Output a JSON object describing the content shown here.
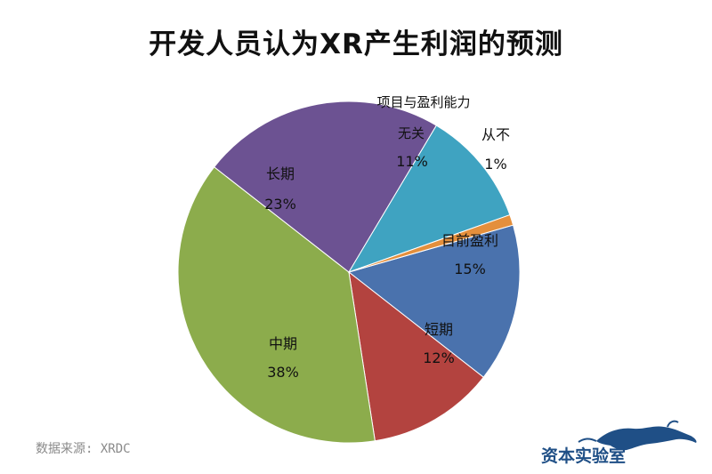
{
  "title": "开发人员认为XR产生利润的预测",
  "source": "数据来源: XRDC",
  "logo_text": "资本实验室",
  "colors": {
    "title": "#111111",
    "source": "#8a8a8a",
    "logo": "#1f4f86"
  },
  "chart_data": {
    "type": "pie",
    "title": "开发人员认为XR产生利润的预测",
    "slices": [
      {
        "label": "目前盈利",
        "value": 15,
        "display": "15%",
        "color": "#4a72ad"
      },
      {
        "label": "短期",
        "value": 12,
        "display": "12%",
        "color": "#b3433f"
      },
      {
        "label": "中期",
        "value": 38,
        "display": "38%",
        "color": "#8cac4c"
      },
      {
        "label": "长期",
        "value": 23,
        "display": "23%",
        "color": "#6c5292"
      },
      {
        "label": "项目与盈利能力无关",
        "value": 11,
        "display": "11%",
        "color": "#3fa3c1"
      },
      {
        "label": "从不",
        "value": 1,
        "display": "1%",
        "color": "#e48f3c"
      }
    ],
    "start_angle_deg": 74,
    "direction": "clockwise",
    "legend": "none"
  }
}
